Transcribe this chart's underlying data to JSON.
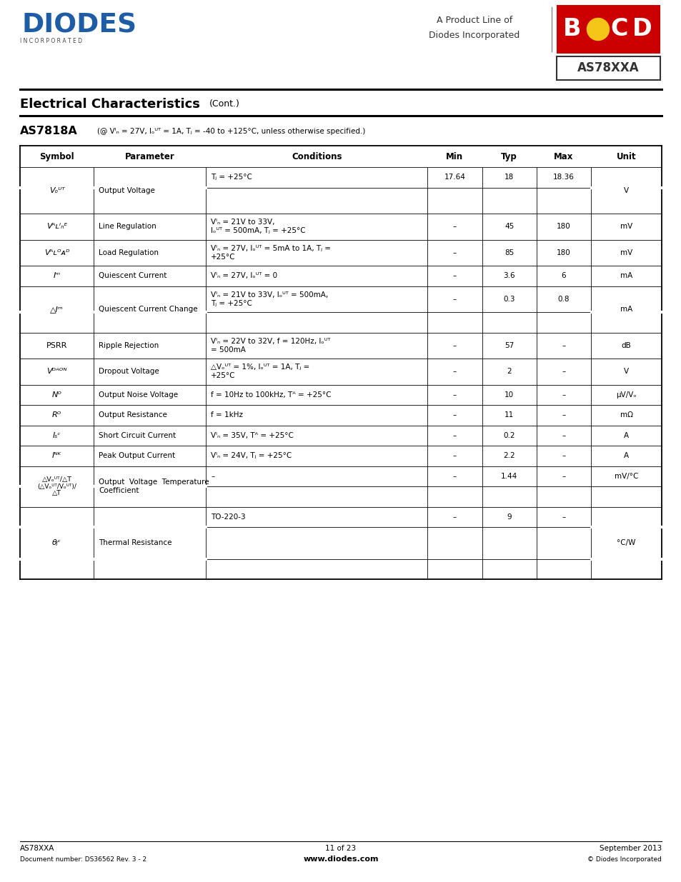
{
  "page_width": 9.54,
  "page_height": 12.35,
  "bg_color": "#ffffff",
  "header": {
    "diodes_color": "#1f5ca6",
    "product_line_text": "A Product Line of",
    "diodes_incorporated_text": "Diodes Incorporated",
    "bcd_box_color": "#cc0000",
    "part_number_box": "AS78XXA"
  },
  "section_title": "Electrical Characteristics",
  "section_cont": "(Cont.)",
  "device_title": "AS7818A",
  "table_header": [
    "Symbol",
    "Parameter",
    "Conditions",
    "Min",
    "Typ",
    "Max",
    "Unit"
  ],
  "footer": {
    "left_top": "AS78XXA",
    "left_bot": "Document number: DS36562 Rev. 3 - 2",
    "center_top": "11 of 23",
    "center_bot": "www.diodes.com",
    "right_top": "September 2013",
    "right_bot": "© Diodes Incorporated"
  }
}
